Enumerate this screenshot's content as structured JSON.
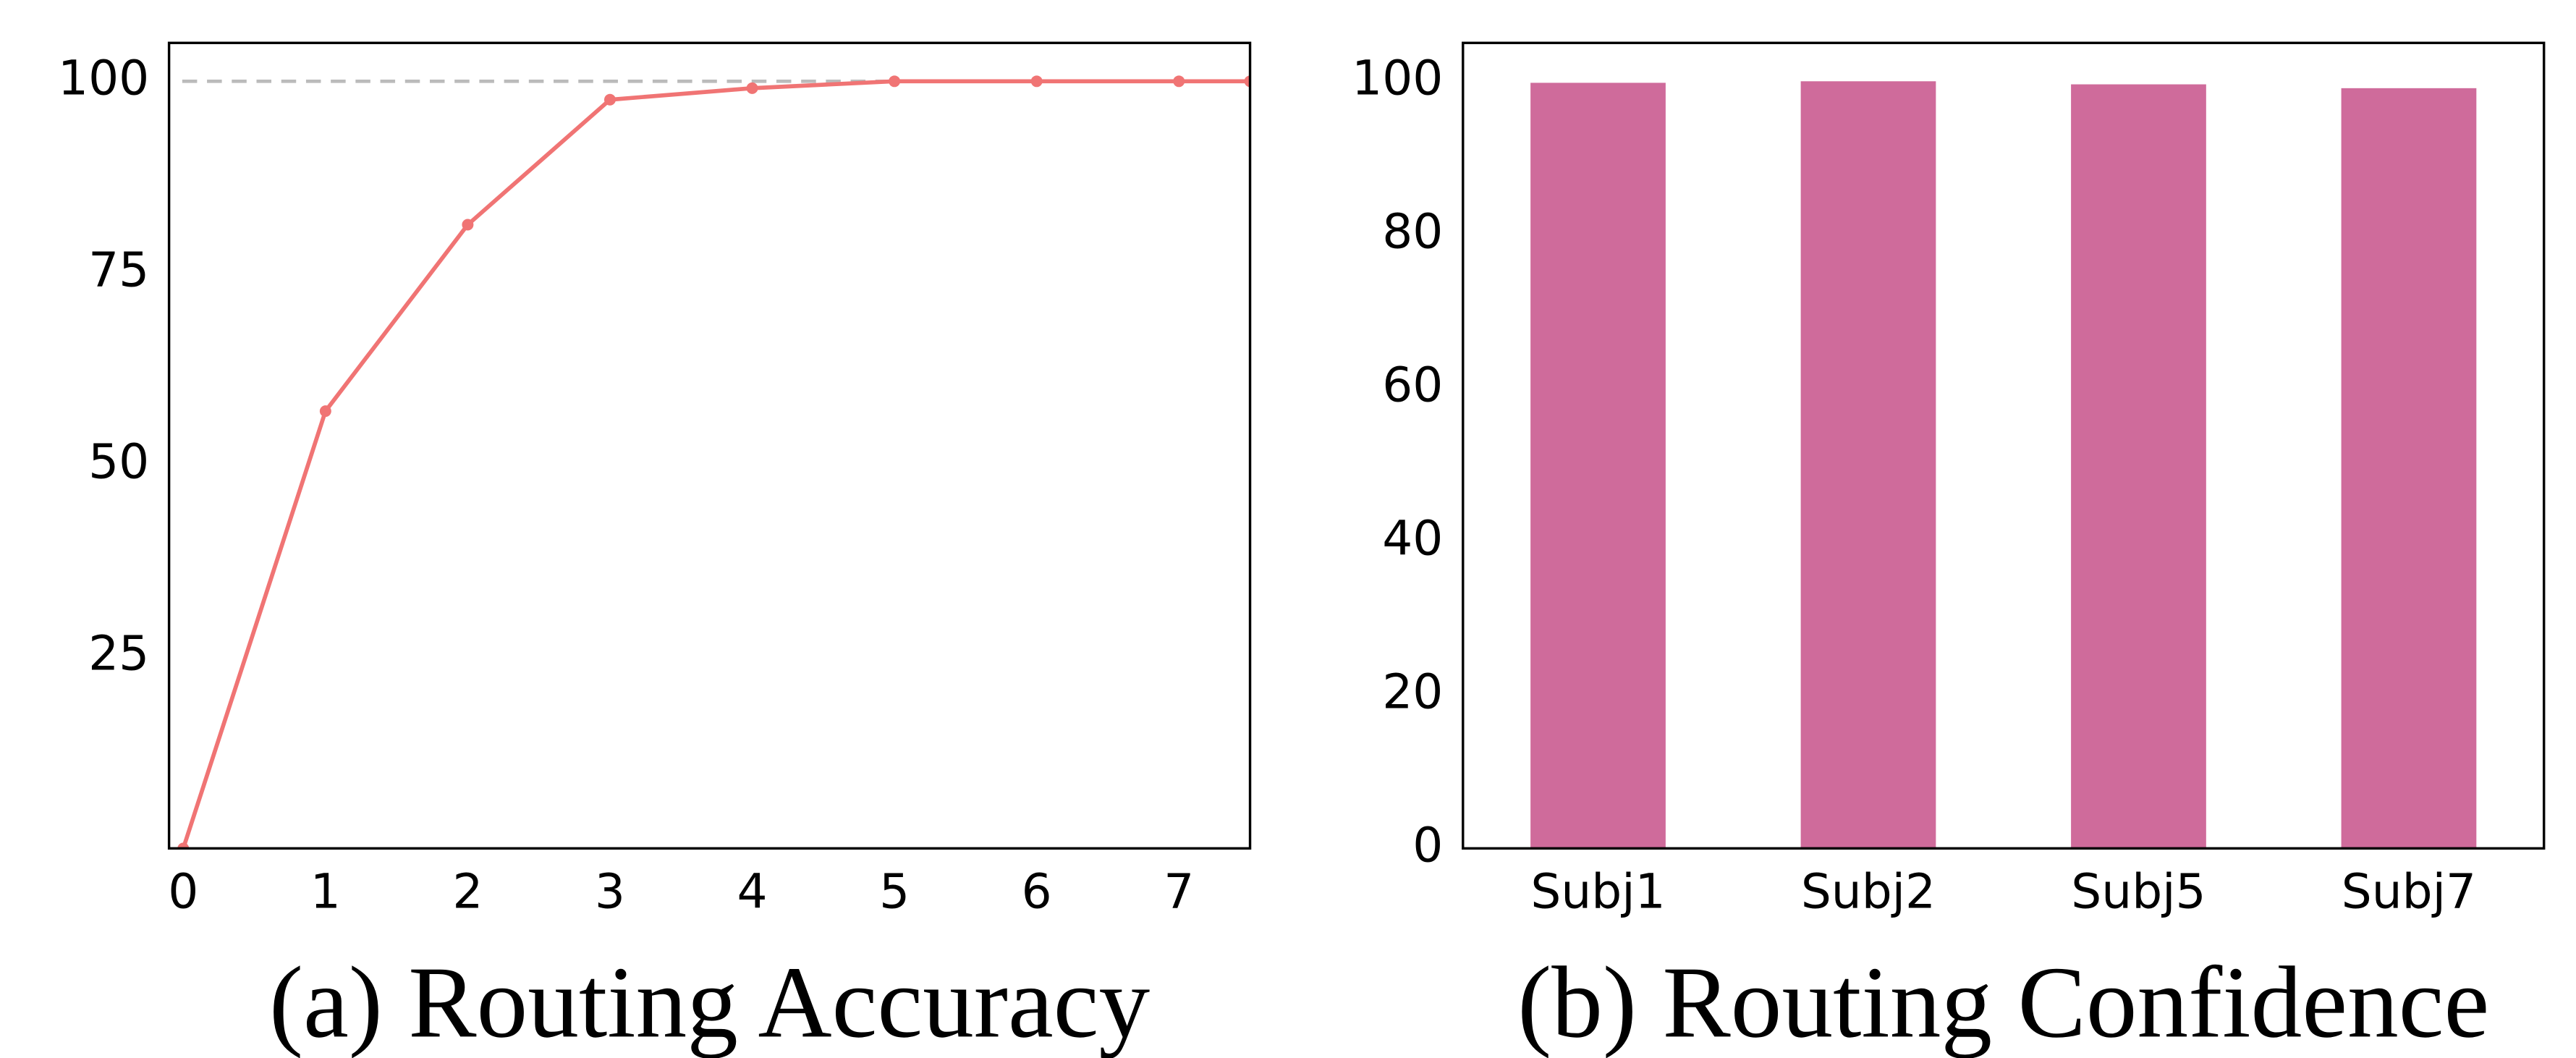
{
  "chart_data": [
    {
      "type": "line",
      "caption": "(a) Routing Accuracy",
      "x": [
        0,
        1,
        2,
        3,
        4,
        5,
        6,
        7,
        7.5
      ],
      "series": [
        {
          "color": "#f07474",
          "values": [
            0,
            57,
            81.3,
            97.6,
            99.1,
            100,
            100,
            100,
            100
          ]
        }
      ],
      "xlim": [
        -0.1,
        7.5
      ],
      "xticks": [
        0,
        1,
        2,
        3,
        4,
        5,
        6,
        7
      ],
      "ylim": [
        0,
        105
      ],
      "yticks": [
        25,
        50,
        75,
        100
      ],
      "reference": 100,
      "reference_color": "#bbbbbb"
    },
    {
      "type": "bar",
      "caption": "(b) Routing Confidence",
      "categories": [
        "Subj1",
        "Subj2",
        "Subj5",
        "Subj7"
      ],
      "values": [
        99.8,
        100,
        99.6,
        99.1
      ],
      "color": "#cf6b9b",
      "ylim": [
        0,
        105
      ],
      "yticks": [
        0,
        20,
        40,
        60,
        80,
        100
      ]
    }
  ]
}
